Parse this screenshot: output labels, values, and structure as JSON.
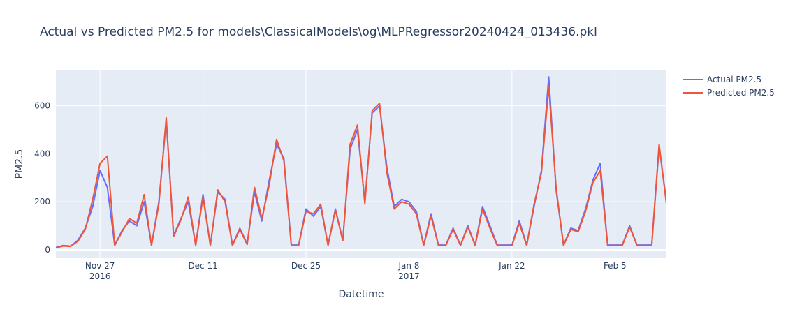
{
  "chart_data": {
    "type": "line",
    "title": "Actual vs Predicted PM2.5 for models\\ClassicalModels\\og\\MLPRegressor20240424_013436.pkl",
    "xlabel": "Datetime",
    "ylabel": "PM2.5",
    "x_range": [
      "2016-11-21",
      "2017-02-12"
    ],
    "ylim": [
      -35,
      750
    ],
    "y_ticks": [
      0,
      200,
      400,
      600
    ],
    "x_ticks": [
      {
        "date": "2016-11-27",
        "label": "Nov 27",
        "sublabel": "2016"
      },
      {
        "date": "2016-12-11",
        "label": "Dec 11",
        "sublabel": ""
      },
      {
        "date": "2016-12-25",
        "label": "Dec 25",
        "sublabel": ""
      },
      {
        "date": "2017-01-08",
        "label": "Jan 8",
        "sublabel": "2017"
      },
      {
        "date": "2017-01-22",
        "label": "Jan 22",
        "sublabel": ""
      },
      {
        "date": "2017-02-05",
        "label": "Feb 5",
        "sublabel": ""
      }
    ],
    "grid": true,
    "legend_position": "top-right",
    "x": [
      "2016-11-21",
      "2016-11-22",
      "2016-11-23",
      "2016-11-24",
      "2016-11-25",
      "2016-11-26",
      "2016-11-27",
      "2016-11-28",
      "2016-11-29",
      "2016-11-30",
      "2016-12-01",
      "2016-12-02",
      "2016-12-03",
      "2016-12-04",
      "2016-12-05",
      "2016-12-06",
      "2016-12-07",
      "2016-12-08",
      "2016-12-09",
      "2016-12-10",
      "2016-12-11",
      "2016-12-12",
      "2016-12-13",
      "2016-12-14",
      "2016-12-15",
      "2016-12-16",
      "2016-12-17",
      "2016-12-18",
      "2016-12-19",
      "2016-12-20",
      "2016-12-21",
      "2016-12-22",
      "2016-12-23",
      "2016-12-24",
      "2016-12-25",
      "2016-12-26",
      "2016-12-27",
      "2016-12-28",
      "2016-12-29",
      "2016-12-30",
      "2016-12-31",
      "2017-01-01",
      "2017-01-02",
      "2017-01-03",
      "2017-01-04",
      "2017-01-05",
      "2017-01-06",
      "2017-01-07",
      "2017-01-08",
      "2017-01-09",
      "2017-01-10",
      "2017-01-11",
      "2017-01-12",
      "2017-01-13",
      "2017-01-14",
      "2017-01-15",
      "2017-01-16",
      "2017-01-17",
      "2017-01-18",
      "2017-01-19",
      "2017-01-20",
      "2017-01-21",
      "2017-01-22",
      "2017-01-23",
      "2017-01-24",
      "2017-01-25",
      "2017-01-26",
      "2017-01-27",
      "2017-01-28",
      "2017-01-29",
      "2017-01-30",
      "2017-01-31",
      "2017-02-01",
      "2017-02-02",
      "2017-02-03",
      "2017-02-04",
      "2017-02-05",
      "2017-02-06",
      "2017-02-07",
      "2017-02-08",
      "2017-02-09",
      "2017-02-10",
      "2017-02-11",
      "2017-02-12"
    ],
    "series": [
      {
        "name": "Actual PM2.5",
        "color": "#636efa",
        "values": [
          10,
          18,
          15,
          40,
          90,
          180,
          330,
          260,
          20,
          80,
          120,
          100,
          200,
          20,
          200,
          540,
          60,
          130,
          200,
          20,
          230,
          20,
          240,
          210,
          20,
          90,
          25,
          240,
          120,
          290,
          440,
          380,
          20,
          20,
          170,
          140,
          180,
          20,
          170,
          40,
          420,
          500,
          200,
          570,
          600,
          340,
          180,
          210,
          200,
          160,
          20,
          150,
          20,
          20,
          90,
          20,
          100,
          20,
          180,
          100,
          20,
          20,
          20,
          120,
          20,
          180,
          330,
          720,
          250,
          20,
          90,
          80,
          170,
          290,
          360,
          20,
          20,
          20,
          100,
          20,
          20,
          20,
          430,
          200
        ],
        "width": 2
      },
      {
        "name": "Predicted PM2.5",
        "color": "#ef553b",
        "values": [
          8,
          16,
          14,
          36,
          85,
          210,
          360,
          390,
          18,
          75,
          130,
          110,
          230,
          18,
          190,
          550,
          55,
          125,
          220,
          18,
          220,
          18,
          250,
          200,
          18,
          85,
          22,
          260,
          130,
          270,
          460,
          370,
          18,
          18,
          160,
          150,
          190,
          18,
          165,
          38,
          440,
          520,
          190,
          580,
          610,
          320,
          170,
          200,
          190,
          150,
          18,
          140,
          18,
          18,
          85,
          18,
          95,
          18,
          170,
          90,
          18,
          18,
          18,
          110,
          18,
          190,
          320,
          680,
          260,
          18,
          85,
          75,
          160,
          280,
          330,
          18,
          18,
          18,
          95,
          18,
          18,
          18,
          440,
          190
        ],
        "width": 2
      }
    ]
  }
}
